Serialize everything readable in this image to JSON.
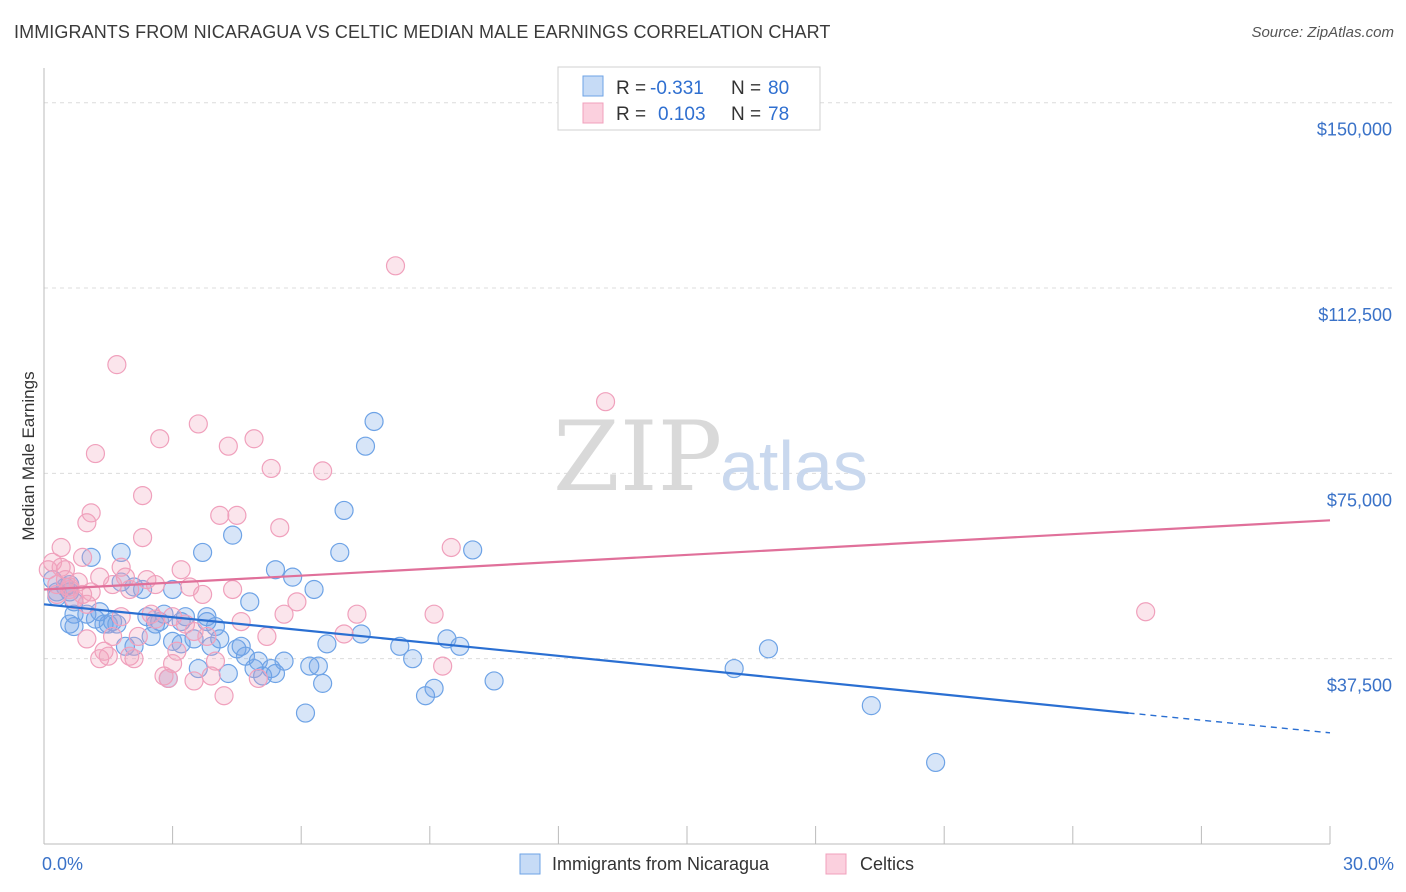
{
  "title": "IMMIGRANTS FROM NICARAGUA VS CELTIC MEDIAN MALE EARNINGS CORRELATION CHART",
  "source": "Source: ZipAtlas.com",
  "watermark": {
    "zip": "ZIP",
    "atlas": "atlas"
  },
  "legend": {
    "rows": [
      {
        "r_label": "R =",
        "r_value": "-0.331",
        "n_label": "N =",
        "n_value": "80"
      },
      {
        "r_label": "R =",
        "r_value": "0.103",
        "n_label": "N =",
        "n_value": "78"
      }
    ]
  },
  "colors": {
    "blue": "#6ea3e6",
    "pink": "#f0a0bc",
    "blue_line": "#2a6fd2",
    "pink_line": "#e0709a"
  },
  "chart_data": {
    "type": "scatter",
    "title": "IMMIGRANTS FROM NICARAGUA VS CELTIC MEDIAN MALE EARNINGS CORRELATION CHART",
    "xlabel": "",
    "ylabel": "Median Male Earnings",
    "xlim": [
      0,
      30
    ],
    "ylim": [
      0,
      155000
    ],
    "x_tick_labels": [
      "0.0%",
      "30.0%"
    ],
    "y_ticks": [
      37500,
      75000,
      112500,
      150000
    ],
    "y_tick_labels": [
      "$37,500",
      "$75,000",
      "$112,500",
      "$150,000"
    ],
    "grid": true,
    "legend_placement": "top-center",
    "series": [
      {
        "name": "Immigrants from Nicaragua",
        "color": "#6ea3e6",
        "r": -0.331,
        "n": 80,
        "trend": {
          "x": [
            0,
            25.3
          ],
          "y": [
            48500,
            26500
          ],
          "dashed_to": [
            30,
            22500
          ]
        },
        "points": [
          [
            0.2,
            53500
          ],
          [
            0.3,
            51000
          ],
          [
            0.3,
            50000
          ],
          [
            0.5,
            52000
          ],
          [
            0.6,
            51000
          ],
          [
            0.6,
            52500
          ],
          [
            0.7,
            49000
          ],
          [
            0.6,
            44500
          ],
          [
            0.7,
            46500
          ],
          [
            0.7,
            44000
          ],
          [
            1.0,
            46500
          ],
          [
            1.1,
            58000
          ],
          [
            1.2,
            45500
          ],
          [
            1.3,
            47000
          ],
          [
            1.4,
            44500
          ],
          [
            1.5,
            44500
          ],
          [
            1.6,
            45000
          ],
          [
            1.7,
            44500
          ],
          [
            1.8,
            53000
          ],
          [
            1.8,
            59000
          ],
          [
            1.9,
            40000
          ],
          [
            2.1,
            40000
          ],
          [
            2.1,
            52000
          ],
          [
            2.3,
            51500
          ],
          [
            2.4,
            46000
          ],
          [
            2.5,
            42000
          ],
          [
            2.6,
            44500
          ],
          [
            2.7,
            45000
          ],
          [
            2.8,
            46500
          ],
          [
            2.9,
            33500
          ],
          [
            3.0,
            41000
          ],
          [
            3.0,
            51500
          ],
          [
            3.2,
            45000
          ],
          [
            3.2,
            40500
          ],
          [
            3.3,
            46000
          ],
          [
            3.5,
            41500
          ],
          [
            3.6,
            35500
          ],
          [
            3.7,
            59000
          ],
          [
            3.8,
            45000
          ],
          [
            3.8,
            46000
          ],
          [
            3.9,
            40000
          ],
          [
            4.0,
            44000
          ],
          [
            4.1,
            41500
          ],
          [
            4.3,
            34500
          ],
          [
            4.4,
            62500
          ],
          [
            4.5,
            39500
          ],
          [
            4.6,
            40000
          ],
          [
            4.7,
            38000
          ],
          [
            4.8,
            49000
          ],
          [
            4.9,
            35500
          ],
          [
            5.0,
            37000
          ],
          [
            5.1,
            34000
          ],
          [
            5.3,
            35500
          ],
          [
            5.4,
            34500
          ],
          [
            5.4,
            55500
          ],
          [
            5.6,
            37000
          ],
          [
            5.8,
            54000
          ],
          [
            6.1,
            26500
          ],
          [
            6.2,
            36000
          ],
          [
            6.3,
            51500
          ],
          [
            6.4,
            36000
          ],
          [
            6.5,
            32500
          ],
          [
            6.6,
            40500
          ],
          [
            6.9,
            59000
          ],
          [
            7.0,
            67500
          ],
          [
            7.4,
            42500
          ],
          [
            7.5,
            80500
          ],
          [
            7.7,
            85500
          ],
          [
            8.3,
            40000
          ],
          [
            8.6,
            37500
          ],
          [
            8.9,
            30000
          ],
          [
            9.1,
            31500
          ],
          [
            9.4,
            41500
          ],
          [
            9.7,
            40000
          ],
          [
            10.0,
            59500
          ],
          [
            10.5,
            33000
          ],
          [
            16.1,
            35500
          ],
          [
            16.9,
            39500
          ],
          [
            19.3,
            28000
          ],
          [
            20.8,
            16500
          ]
        ]
      },
      {
        "name": "Celtics",
        "color": "#f0a0bc",
        "r": 0.103,
        "n": 78,
        "trend": {
          "x": [
            0,
            30
          ],
          "y": [
            51500,
            65500
          ]
        },
        "points": [
          [
            0.1,
            55500
          ],
          [
            0.2,
            57000
          ],
          [
            0.3,
            52500
          ],
          [
            0.3,
            50500
          ],
          [
            0.4,
            60000
          ],
          [
            0.4,
            56000
          ],
          [
            0.5,
            55500
          ],
          [
            0.5,
            53500
          ],
          [
            0.6,
            52000
          ],
          [
            0.6,
            51500
          ],
          [
            0.7,
            49500
          ],
          [
            0.8,
            53000
          ],
          [
            0.9,
            58000
          ],
          [
            0.9,
            50500
          ],
          [
            1.0,
            48500
          ],
          [
            1.0,
            41500
          ],
          [
            1.0,
            65000
          ],
          [
            1.1,
            67000
          ],
          [
            1.1,
            51000
          ],
          [
            1.2,
            79000
          ],
          [
            1.3,
            54000
          ],
          [
            1.3,
            37500
          ],
          [
            1.4,
            39000
          ],
          [
            1.5,
            38000
          ],
          [
            1.6,
            52500
          ],
          [
            1.6,
            42000
          ],
          [
            1.7,
            97000
          ],
          [
            1.8,
            56000
          ],
          [
            1.8,
            46000
          ],
          [
            1.9,
            54000
          ],
          [
            2.0,
            51500
          ],
          [
            2.0,
            38000
          ],
          [
            2.1,
            37500
          ],
          [
            2.2,
            42000
          ],
          [
            2.3,
            70500
          ],
          [
            2.3,
            62000
          ],
          [
            2.4,
            53500
          ],
          [
            2.5,
            46500
          ],
          [
            2.6,
            52500
          ],
          [
            2.6,
            45500
          ],
          [
            2.7,
            82000
          ],
          [
            2.8,
            34000
          ],
          [
            2.9,
            33500
          ],
          [
            3.0,
            46000
          ],
          [
            3.0,
            36500
          ],
          [
            3.1,
            39000
          ],
          [
            3.2,
            55500
          ],
          [
            3.3,
            44500
          ],
          [
            3.4,
            52000
          ],
          [
            3.5,
            43000
          ],
          [
            3.5,
            33000
          ],
          [
            3.6,
            85000
          ],
          [
            3.7,
            50500
          ],
          [
            3.8,
            42000
          ],
          [
            3.9,
            34000
          ],
          [
            4.0,
            37000
          ],
          [
            4.1,
            66500
          ],
          [
            4.2,
            30000
          ],
          [
            4.3,
            80500
          ],
          [
            4.4,
            51500
          ],
          [
            4.5,
            66500
          ],
          [
            4.6,
            45000
          ],
          [
            4.9,
            82000
          ],
          [
            5.0,
            33500
          ],
          [
            5.2,
            42000
          ],
          [
            5.3,
            76000
          ],
          [
            5.5,
            64000
          ],
          [
            5.6,
            46500
          ],
          [
            5.9,
            49000
          ],
          [
            6.5,
            75500
          ],
          [
            7.0,
            42500
          ],
          [
            7.3,
            46500
          ],
          [
            8.2,
            117000
          ],
          [
            9.1,
            46500
          ],
          [
            9.3,
            36000
          ],
          [
            9.5,
            60000
          ],
          [
            13.1,
            89500
          ],
          [
            25.7,
            47000
          ]
        ]
      }
    ]
  }
}
